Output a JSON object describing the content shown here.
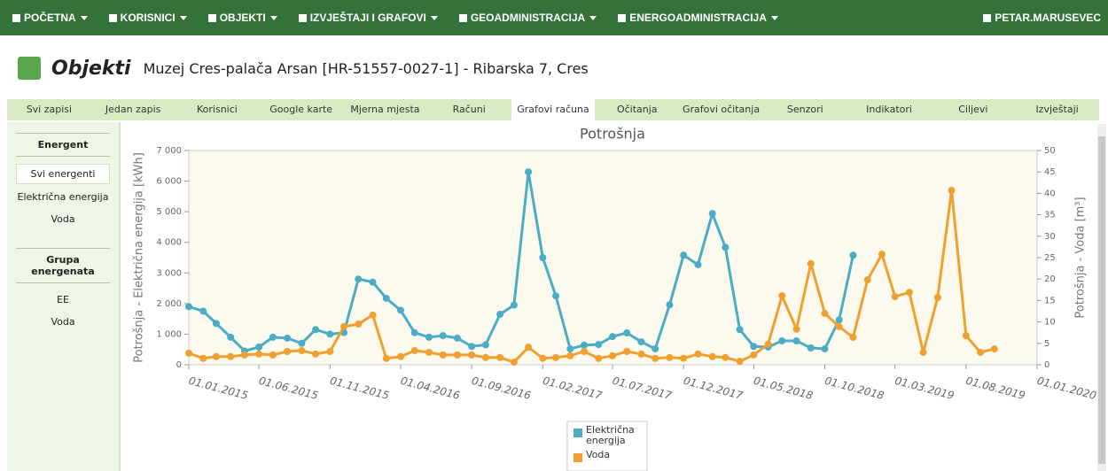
{
  "nav": {
    "items": [
      "POČETNA",
      "KORISNICI",
      "OBJEKTI",
      "IZVJEŠTAJI I GRAFOVI",
      "GEOADMINISTRACIJA",
      "ENERGOADMINISTRACIJA"
    ],
    "user": "PETAR.MARUSEVEC"
  },
  "header": {
    "title": "Objekti",
    "subtitle": "Muzej Cres-palača Arsan [HR-51557-0027-1] - Ribarska 7, Cres"
  },
  "tabs": {
    "items": [
      "Svi zapisi",
      "Jedan zapis",
      "Korisnici",
      "Google karte",
      "Mjerna mjesta",
      "Računi",
      "Grafovi računa",
      "Očitanja",
      "Grafovi očitanja",
      "Senzori",
      "Indikatori",
      "Ciljevi",
      "Izvještaji"
    ],
    "active": 6
  },
  "sidebar": {
    "group1": {
      "title": "Energent",
      "items": [
        "Svi energenti",
        "Električna energija",
        "Voda"
      ],
      "active": 0
    },
    "group2": {
      "title": "Grupa energenata",
      "items": [
        "EE",
        "Voda"
      ]
    }
  },
  "chart_data": {
    "type": "line",
    "title": "Potrošnja",
    "ylabel": "Potrošnja - Električna energija [kWh]",
    "y2label": "Potrošnja - Voda [m³]",
    "x": [
      "2015-01-01",
      "2015-02-01",
      "2015-03-01",
      "2015-04-01",
      "2015-05-01",
      "2015-06-01",
      "2015-07-01",
      "2015-08-01",
      "2015-09-01",
      "2015-10-01",
      "2015-11-01",
      "2015-12-01",
      "2016-01-01",
      "2016-02-01",
      "2016-03-01",
      "2016-04-01",
      "2016-05-01",
      "2016-06-01",
      "2016-07-01",
      "2016-08-01",
      "2016-09-01",
      "2016-10-01",
      "2016-11-01",
      "2016-12-01",
      "2017-01-01",
      "2017-02-01",
      "2017-03-01",
      "2017-04-01",
      "2017-05-01",
      "2017-06-01",
      "2017-07-01",
      "2017-08-01",
      "2017-09-01",
      "2017-10-01",
      "2017-11-01",
      "2017-12-01",
      "2018-01-01",
      "2018-02-01",
      "2018-03-01",
      "2018-04-01",
      "2018-05-01",
      "2018-06-01",
      "2018-07-01",
      "2018-08-01",
      "2018-09-01",
      "2018-10-01",
      "2018-11-01",
      "2018-12-01",
      "2019-01-01",
      "2019-02-01",
      "2019-03-01",
      "2019-04-01",
      "2019-05-01",
      "2019-06-01",
      "2019-07-01",
      "2019-08-01",
      "2019-09-01",
      "2019-10-01"
    ],
    "series": [
      {
        "name": "Električna energija",
        "color": "#4bacc6",
        "axis": "y",
        "values": [
          1900,
          1750,
          1350,
          900,
          450,
          580,
          900,
          870,
          700,
          1150,
          1000,
          1050,
          2800,
          2700,
          2170,
          1780,
          1050,
          900,
          950,
          870,
          600,
          650,
          1650,
          1950,
          6300,
          3500,
          2250,
          520,
          640,
          660,
          920,
          1040,
          750,
          520,
          1960,
          3580,
          3270,
          4940,
          3840,
          1150,
          600,
          580,
          780,
          780,
          550,
          520,
          1470,
          3580,
          null,
          null,
          null,
          null,
          null,
          null,
          null,
          null,
          null,
          null
        ]
      },
      {
        "name": "Voda",
        "color": "#f0a030",
        "axis": "y2",
        "values": [
          2.7,
          1.5,
          1.9,
          1.9,
          2.3,
          2.5,
          2.3,
          3.1,
          3.3,
          2.5,
          3.1,
          8.9,
          9.5,
          11.6,
          1.5,
          1.9,
          3.3,
          2.9,
          2.3,
          2.3,
          2.3,
          1.7,
          1.7,
          0.6,
          4.1,
          1.5,
          1.7,
          2.1,
          3.1,
          1.5,
          2.1,
          3.1,
          2.5,
          1.5,
          1.7,
          1.5,
          2.5,
          1.9,
          1.7,
          0.8,
          2.3,
          4.8,
          16.1,
          8.3,
          23.6,
          12.0,
          8.9,
          6.4,
          19.8,
          25.8,
          15.9,
          16.9,
          2.9,
          15.7,
          40.7,
          6.8,
          2.9,
          3.7
        ]
      }
    ],
    "xlim": [
      "2015-01-01",
      "2020-01-01"
    ],
    "xticks": [
      {
        "value": "2015-01-01",
        "label": "01.01.2015"
      },
      {
        "value": "2015-06-01",
        "label": "01.06.2015"
      },
      {
        "value": "2015-11-01",
        "label": "01.11.2015"
      },
      {
        "value": "2016-04-01",
        "label": "01.04.2016"
      },
      {
        "value": "2016-09-01",
        "label": "01.09.2016"
      },
      {
        "value": "2017-02-01",
        "label": "01.02.2017"
      },
      {
        "value": "2017-07-01",
        "label": "01.07.2017"
      },
      {
        "value": "2017-12-01",
        "label": "01.12.2017"
      },
      {
        "value": "2018-05-01",
        "label": "01.05.2018"
      },
      {
        "value": "2018-10-01",
        "label": "01.10.2018"
      },
      {
        "value": "2019-03-01",
        "label": "01.03.2019"
      },
      {
        "value": "2019-08-01",
        "label": "01.08.2019"
      },
      {
        "value": "2020-01-01",
        "label": "01.01.2020"
      }
    ],
    "ylim": [
      0,
      7000
    ],
    "yticks": [
      0,
      {
        "value": 1000,
        "label": "1 000"
      },
      {
        "value": 2000,
        "label": "2 000"
      },
      {
        "value": 3000,
        "label": "3 000"
      },
      {
        "value": 4000,
        "label": "4 000"
      },
      {
        "value": 5000,
        "label": "5 000"
      },
      {
        "value": 6000,
        "label": "6 000"
      },
      {
        "value": 7000,
        "label": "7 000"
      }
    ],
    "y2lim": [
      0,
      50
    ],
    "y2ticks": [
      0,
      5,
      10,
      15,
      20,
      25,
      30,
      35,
      40,
      45,
      50
    ],
    "legend": "bottom"
  }
}
